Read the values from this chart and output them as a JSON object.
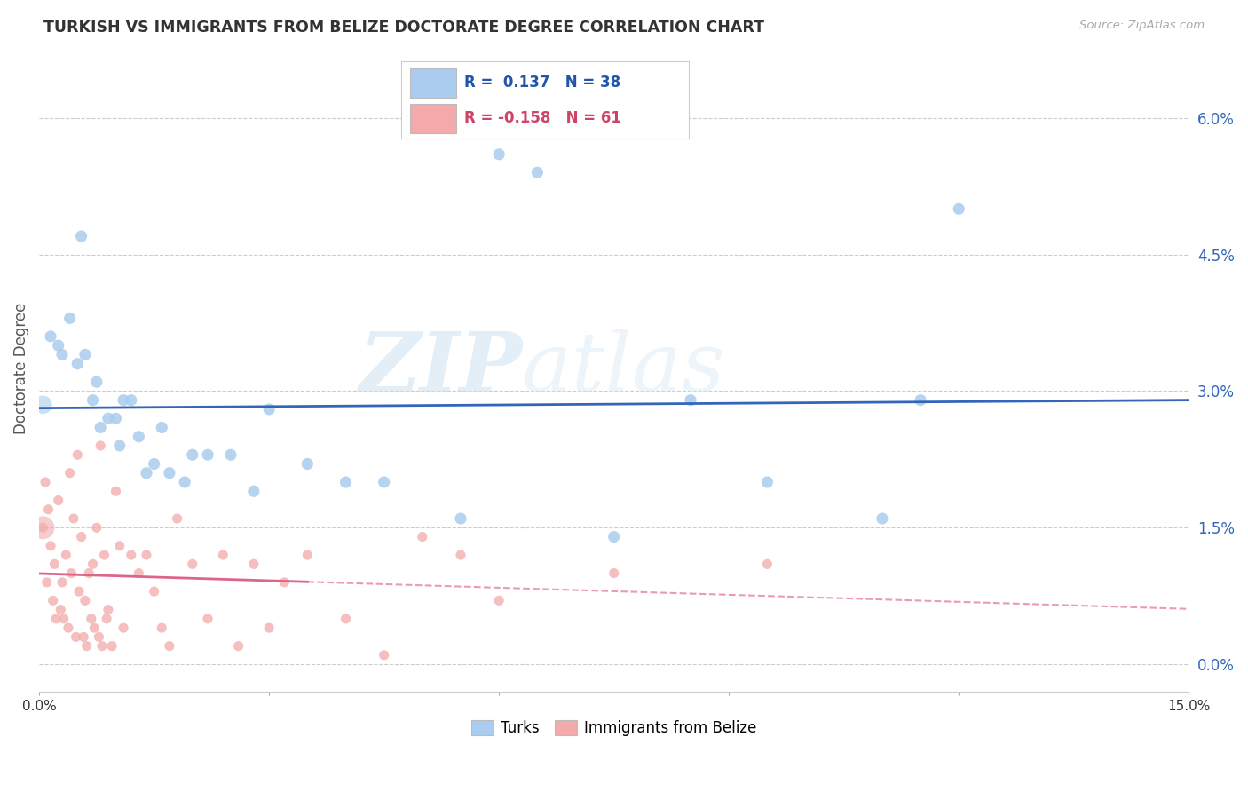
{
  "title": "TURKISH VS IMMIGRANTS FROM BELIZE DOCTORATE DEGREE CORRELATION CHART",
  "source": "Source: ZipAtlas.com",
  "ylabel": "Doctorate Degree",
  "ytick_values": [
    0.0,
    1.5,
    3.0,
    4.5,
    6.0
  ],
  "xlim": [
    0.0,
    15.0
  ],
  "ylim": [
    -0.3,
    6.8
  ],
  "ymin_display": 0.0,
  "ymax_display": 6.5,
  "blue_R": 0.137,
  "blue_N": 38,
  "pink_R": -0.158,
  "pink_N": 61,
  "blue_color": "#aaccee",
  "pink_color": "#f4aaaa",
  "blue_line_color": "#3366bb",
  "pink_line_color": "#dd6688",
  "watermark_zip": "ZIP",
  "watermark_atlas": "atlas",
  "legend_label_blue": "Turks",
  "legend_label_pink": "Immigrants from Belize",
  "blue_points_x": [
    0.15,
    0.25,
    0.3,
    0.4,
    0.5,
    0.55,
    0.6,
    0.7,
    0.75,
    0.8,
    0.9,
    1.0,
    1.05,
    1.1,
    1.2,
    1.3,
    1.4,
    1.5,
    1.6,
    1.7,
    1.9,
    2.0,
    2.2,
    2.5,
    2.8,
    3.0,
    3.5,
    4.0,
    4.5,
    5.5,
    6.0,
    6.5,
    7.5,
    8.5,
    9.5,
    11.0,
    11.5,
    12.0
  ],
  "blue_points_y": [
    3.6,
    3.5,
    3.4,
    3.8,
    3.3,
    4.7,
    3.4,
    2.9,
    3.1,
    2.6,
    2.7,
    2.7,
    2.4,
    2.9,
    2.9,
    2.5,
    2.1,
    2.2,
    2.6,
    2.1,
    2.0,
    2.3,
    2.3,
    2.3,
    1.9,
    2.8,
    2.2,
    2.0,
    2.0,
    1.6,
    5.6,
    5.4,
    1.4,
    2.9,
    2.0,
    1.6,
    2.9,
    5.0
  ],
  "pink_points_x": [
    0.05,
    0.08,
    0.1,
    0.12,
    0.15,
    0.18,
    0.2,
    0.22,
    0.25,
    0.28,
    0.3,
    0.32,
    0.35,
    0.38,
    0.4,
    0.42,
    0.45,
    0.48,
    0.5,
    0.52,
    0.55,
    0.58,
    0.6,
    0.62,
    0.65,
    0.68,
    0.7,
    0.72,
    0.75,
    0.78,
    0.8,
    0.82,
    0.85,
    0.88,
    0.9,
    0.95,
    1.0,
    1.05,
    1.1,
    1.2,
    1.3,
    1.4,
    1.5,
    1.6,
    1.7,
    1.8,
    2.0,
    2.2,
    2.4,
    2.6,
    2.8,
    3.0,
    3.2,
    3.5,
    4.0,
    4.5,
    5.0,
    5.5,
    6.0,
    7.5,
    9.5
  ],
  "pink_points_y": [
    1.5,
    2.0,
    0.9,
    1.7,
    1.3,
    0.7,
    1.1,
    0.5,
    1.8,
    0.6,
    0.9,
    0.5,
    1.2,
    0.4,
    2.1,
    1.0,
    1.6,
    0.3,
    2.3,
    0.8,
    1.4,
    0.3,
    0.7,
    0.2,
    1.0,
    0.5,
    1.1,
    0.4,
    1.5,
    0.3,
    2.4,
    0.2,
    1.2,
    0.5,
    0.6,
    0.2,
    1.9,
    1.3,
    0.4,
    1.2,
    1.0,
    1.2,
    0.8,
    0.4,
    0.2,
    1.6,
    1.1,
    0.5,
    1.2,
    0.2,
    1.1,
    0.4,
    0.9,
    1.2,
    0.5,
    0.1,
    1.4,
    1.2,
    0.7,
    1.0,
    1.1
  ],
  "blue_marker_size": 90,
  "pink_marker_size": 65,
  "background_color": "#ffffff",
  "grid_color": "#cccccc",
  "pink_large_dot_x": 0.05,
  "pink_large_dot_y": 1.5,
  "pink_large_dot_size": 350,
  "blue_large_dot_x": 0.05,
  "blue_large_dot_y": 2.85,
  "blue_large_dot_size": 220
}
